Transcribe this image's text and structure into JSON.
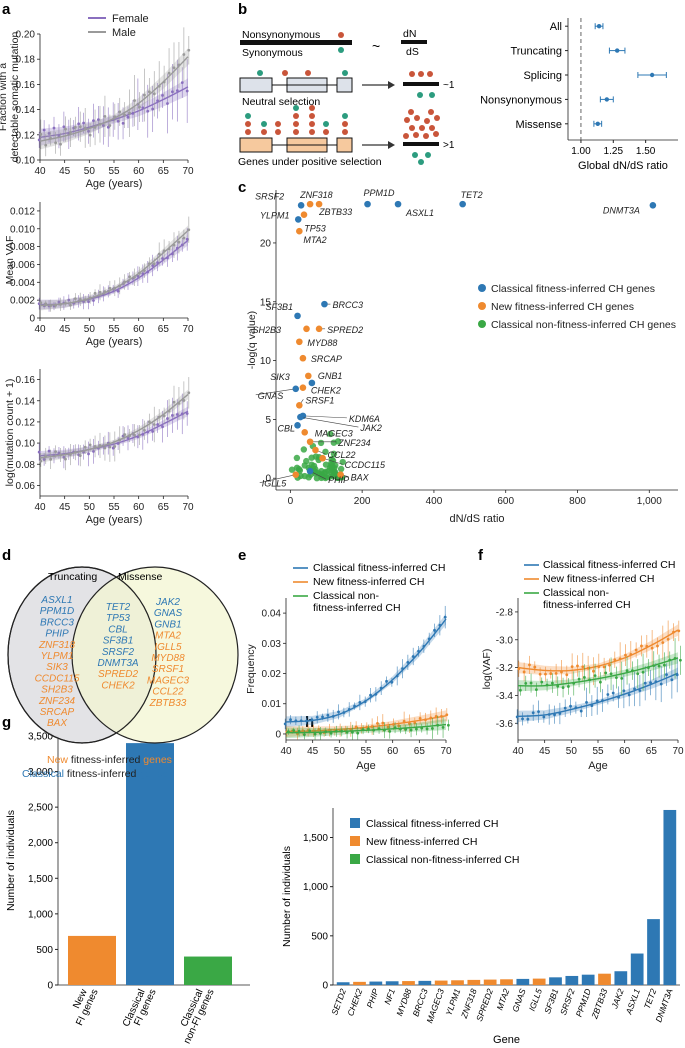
{
  "colors": {
    "classical": "#2e78b4",
    "new": "#ef8a2f",
    "nonfi": "#3aa845",
    "female": "#8a6fbf",
    "male": "#9a9a9a",
    "venn_left": "#e2e2e5",
    "venn_right": "#f3f5d2"
  },
  "panels": {
    "a": "a",
    "b": "b",
    "c": "c",
    "d": "d",
    "e": "e",
    "f": "f",
    "g": "g",
    "h": "h"
  },
  "panel_b": {
    "label_nonsyn": "Nonsynonymous",
    "label_syn": "Synonymous",
    "tilde": "~",
    "dn": "dN",
    "ds": "dS",
    "neutral": "Neutral selection",
    "positive": "Genes under positive selection",
    "ratio_neutral": "~1",
    "ratio_positive": ">1"
  },
  "panel_d": {
    "left_title": "Truncating",
    "right_title": "Missense",
    "legend_new_a": "New",
    "legend_new_b": " fitness-inferred ",
    "legend_new_c": "genes",
    "legend_cls_a": "Classical",
    "legend_cls_b": " fitness-inferred ",
    "legend_cls_c": "genes"
  },
  "chart_data": [
    {
      "id": "a1",
      "type": "line",
      "ylabel": "Fraction with a detectable somatic mutation",
      "xlabel": "Age (years)",
      "xlim": [
        40,
        70
      ],
      "ylim": [
        0.1,
        0.2
      ],
      "xticks": [
        40,
        45,
        50,
        55,
        60,
        65,
        70
      ],
      "yticks": [
        0.1,
        0.12,
        0.14,
        0.16,
        0.18,
        0.2
      ],
      "ytick_labels": [
        "0.10",
        "0.12",
        "0.14",
        "0.16",
        "0.18",
        "0.20"
      ],
      "legend": [
        "Female",
        "Male"
      ],
      "series": [
        {
          "name": "Female",
          "x": [
            40,
            45,
            50,
            55,
            60,
            65,
            70
          ],
          "values": [
            0.118,
            0.121,
            0.126,
            0.132,
            0.139,
            0.148,
            0.158
          ]
        },
        {
          "name": "Male",
          "x": [
            40,
            45,
            50,
            55,
            60,
            65,
            70
          ],
          "values": [
            0.115,
            0.119,
            0.125,
            0.133,
            0.145,
            0.162,
            0.182
          ]
        }
      ]
    },
    {
      "id": "a2",
      "type": "line",
      "ylabel": "Mean VAF",
      "xlabel": "Age (years)",
      "xlim": [
        40,
        70
      ],
      "ylim": [
        0,
        0.013
      ],
      "xticks": [
        40,
        45,
        50,
        55,
        60,
        65,
        70
      ],
      "yticks": [
        0,
        0.002,
        0.004,
        0.006,
        0.008,
        0.01,
        0.012
      ],
      "ytick_labels": [
        "0",
        "0.002",
        "0.004",
        "0.006",
        "0.008",
        "0.010",
        "0.012"
      ],
      "series": [
        {
          "name": "Female",
          "x": [
            40,
            45,
            50,
            55,
            60,
            65,
            70
          ],
          "values": [
            0.0015,
            0.0016,
            0.0021,
            0.003,
            0.0045,
            0.0065,
            0.0087
          ]
        },
        {
          "name": "Male",
          "x": [
            40,
            45,
            50,
            55,
            60,
            65,
            70
          ],
          "values": [
            0.0014,
            0.0016,
            0.0022,
            0.0033,
            0.005,
            0.0073,
            0.0098
          ]
        }
      ]
    },
    {
      "id": "a3",
      "type": "line",
      "ylabel": "log(mutation count + 1)",
      "xlabel": "Age (years)",
      "xlim": [
        40,
        70
      ],
      "ylim": [
        0.05,
        0.17
      ],
      "xticks": [
        40,
        45,
        50,
        55,
        60,
        65,
        70
      ],
      "yticks": [
        0.06,
        0.08,
        0.1,
        0.12,
        0.14,
        0.16
      ],
      "ytick_labels": [
        "0.06",
        "0.08",
        "0.10",
        "0.12",
        "0.14",
        "0.16"
      ],
      "series": [
        {
          "name": "Female",
          "x": [
            40,
            45,
            50,
            55,
            60,
            65,
            70
          ],
          "values": [
            0.088,
            0.09,
            0.094,
            0.099,
            0.107,
            0.118,
            0.13
          ]
        },
        {
          "name": "Male",
          "x": [
            40,
            45,
            50,
            55,
            60,
            65,
            70
          ],
          "values": [
            0.086,
            0.089,
            0.094,
            0.101,
            0.112,
            0.127,
            0.146
          ]
        }
      ]
    },
    {
      "id": "b_forest",
      "type": "scatter",
      "xlabel": "Global dN/dS ratio",
      "xlim": [
        0.9,
        1.75
      ],
      "xticks": [
        1.0,
        1.25,
        1.5
      ],
      "xtick_labels": [
        "1.00",
        "1.25",
        "1.50"
      ],
      "categories": [
        "All",
        "Truncating",
        "Splicing",
        "Nonsynonymous",
        "Missense"
      ],
      "values": [
        1.14,
        1.28,
        1.55,
        1.2,
        1.13
      ],
      "lower": [
        1.11,
        1.22,
        1.44,
        1.15,
        1.1
      ],
      "upper": [
        1.17,
        1.34,
        1.66,
        1.25,
        1.16
      ]
    },
    {
      "id": "c",
      "type": "scatter",
      "xlabel": "dN/dS ratio",
      "ylabel": "-log(q value)",
      "xlim": [
        -40,
        1080
      ],
      "ylim": [
        -1,
        24.5
      ],
      "xticks": [
        0,
        200,
        400,
        600,
        800,
        1000
      ],
      "xtick_labels": [
        "0",
        "200",
        "400",
        "600",
        "800",
        "1,000"
      ],
      "yticks": [
        0,
        5,
        10,
        15,
        20
      ],
      "legend": [
        "Classical fitness-inferred CH genes",
        "New fitness-inferred CH genes",
        "Classical non-fitness-inferred CH genes"
      ],
      "points": [
        {
          "gene": "DNMT3A",
          "x": 1010,
          "y": 23.2,
          "group": "classical"
        },
        {
          "gene": "TET2",
          "x": 480,
          "y": 23.3,
          "group": "classical"
        },
        {
          "gene": "ASXL1",
          "x": 300,
          "y": 23.3,
          "group": "classical"
        },
        {
          "gene": "PPM1D",
          "x": 215,
          "y": 23.3,
          "group": "classical"
        },
        {
          "gene": "ZBTB33",
          "x": 80,
          "y": 23.3,
          "group": "new"
        },
        {
          "gene": "ZNF318",
          "x": 55,
          "y": 23.3,
          "group": "new"
        },
        {
          "gene": "SRSF2",
          "x": 30,
          "y": 23.2,
          "group": "classical"
        },
        {
          "gene": "YLPM1",
          "x": 38,
          "y": 22.4,
          "group": "new"
        },
        {
          "gene": "TP53",
          "x": 22,
          "y": 22.0,
          "group": "classical"
        },
        {
          "gene": "MTA2",
          "x": 25,
          "y": 21.0,
          "group": "new"
        },
        {
          "gene": "BRCC3",
          "x": 95,
          "y": 14.8,
          "group": "classical"
        },
        {
          "gene": "SF3B1",
          "x": 20,
          "y": 13.8,
          "group": "classical"
        },
        {
          "gene": "SPRED2",
          "x": 80,
          "y": 12.7,
          "group": "new"
        },
        {
          "gene": "SH2B3",
          "x": 45,
          "y": 12.7,
          "group": "new"
        },
        {
          "gene": "MYD88",
          "x": 25,
          "y": 11.6,
          "group": "new"
        },
        {
          "gene": "SRCAP",
          "x": 35,
          "y": 10.2,
          "group": "new"
        },
        {
          "gene": "SIK3",
          "x": 50,
          "y": 8.7,
          "group": "new"
        },
        {
          "gene": "GNB1",
          "x": 60,
          "y": 8.1,
          "group": "classical"
        },
        {
          "gene": "CHEK2",
          "x": 35,
          "y": 7.7,
          "group": "new"
        },
        {
          "gene": "GNAS",
          "x": 15,
          "y": 7.6,
          "group": "classical"
        },
        {
          "gene": "SRSF1",
          "x": 25,
          "y": 6.2,
          "group": "new"
        },
        {
          "gene": "KDM6A",
          "x": 35,
          "y": 5.3,
          "group": "classical"
        },
        {
          "gene": "JAK2",
          "x": 28,
          "y": 5.2,
          "group": "classical"
        },
        {
          "gene": "CBL",
          "x": 20,
          "y": 4.5,
          "group": "classical"
        },
        {
          "gene": "MAGEC3",
          "x": 40,
          "y": 3.9,
          "group": "new"
        },
        {
          "gene": "ZNF234",
          "x": 55,
          "y": 3.1,
          "group": "new"
        },
        {
          "gene": "CCL22",
          "x": 70,
          "y": 2.4,
          "group": "new"
        },
        {
          "gene": "CCDC115",
          "x": 90,
          "y": 1.7,
          "group": "new"
        },
        {
          "gene": "BAX",
          "x": 140,
          "y": 0.3,
          "group": "new"
        },
        {
          "gene": "PHIP",
          "x": 55,
          "y": 0.6,
          "group": "classical"
        },
        {
          "gene": "IGLL5",
          "x": 15,
          "y": 0.3,
          "group": "new"
        }
      ]
    },
    {
      "id": "e",
      "type": "line",
      "xlabel": "Age",
      "ylabel": "Frequency",
      "xlim": [
        40,
        70
      ],
      "ylim": [
        -0.002,
        0.045
      ],
      "xticks": [
        40,
        45,
        50,
        55,
        60,
        65,
        70
      ],
      "yticks": [
        0,
        0.01,
        0.02,
        0.03,
        0.04
      ],
      "ytick_labels": [
        "0",
        "0.01",
        "0.02",
        "0.03",
        "0.04"
      ],
      "legend": [
        "Classical fitness-inferred CH",
        "New fitness-inferred CH",
        "Classical non-fitness-inferred CH"
      ],
      "series": [
        {
          "name": "Classical fitness-inferred CH",
          "x": [
            40,
            45,
            50,
            55,
            60,
            65,
            70
          ],
          "values": [
            0.004,
            0.0045,
            0.0065,
            0.011,
            0.018,
            0.027,
            0.038
          ]
        },
        {
          "name": "New fitness-inferred CH",
          "x": [
            40,
            45,
            50,
            55,
            60,
            65,
            70
          ],
          "values": [
            0.0008,
            0.001,
            0.0015,
            0.0022,
            0.0032,
            0.0045,
            0.006
          ]
        },
        {
          "name": "Classical non-fitness-inferred CH",
          "x": [
            40,
            45,
            50,
            55,
            60,
            65,
            70
          ],
          "values": [
            0.0004,
            0.0005,
            0.0008,
            0.0012,
            0.0017,
            0.0023,
            0.0031
          ]
        }
      ]
    },
    {
      "id": "f",
      "type": "line",
      "xlabel": "Age",
      "ylabel": "log(VAF)",
      "xlim": [
        40,
        70
      ],
      "ylim": [
        -3.72,
        -2.7
      ],
      "xticks": [
        40,
        45,
        50,
        55,
        60,
        65,
        70
      ],
      "yticks": [
        -3.6,
        -3.4,
        -3.2,
        -3.0,
        -2.8
      ],
      "ytick_labels": [
        "-3.6",
        "-3.4",
        "-3.2",
        "-3.0",
        "-2.8"
      ],
      "legend": [
        "Classical fitness-inferred CH",
        "New fitness-inferred CH",
        "Classical non-fitness-inferred CH"
      ],
      "series": [
        {
          "name": "Classical fitness-inferred CH",
          "x": [
            40,
            45,
            50,
            55,
            60,
            65,
            70
          ],
          "values": [
            -3.55,
            -3.54,
            -3.5,
            -3.45,
            -3.39,
            -3.32,
            -3.24
          ]
        },
        {
          "name": "New fitness-inferred CH",
          "x": [
            40,
            45,
            50,
            55,
            60,
            65,
            70
          ],
          "values": [
            -3.2,
            -3.22,
            -3.22,
            -3.19,
            -3.13,
            -3.04,
            -2.93
          ]
        },
        {
          "name": "Classical non-fitness-inferred CH",
          "x": [
            40,
            45,
            50,
            55,
            60,
            65,
            70
          ],
          "values": [
            -3.33,
            -3.33,
            -3.31,
            -3.28,
            -3.24,
            -3.19,
            -3.13
          ]
        }
      ]
    },
    {
      "id": "g",
      "type": "bar",
      "ylabel": "Number of individuals",
      "ylim": [
        0,
        3500
      ],
      "categories": [
        "New FI genes",
        "Classical FI genes",
        "Classical non-FI genes"
      ],
      "category_lines": [
        [
          "New",
          "FI genes"
        ],
        [
          "Classical",
          "FI genes"
        ],
        [
          "Classical",
          "non-FI genes"
        ]
      ],
      "values": [
        690,
        3400,
        400
      ],
      "yticks": [
        0,
        500,
        1000,
        1500,
        2000,
        2500,
        3000,
        3500
      ],
      "ytick_labels": [
        "0",
        "500",
        "1,000",
        "1,500",
        "2,000",
        "2,500",
        "3,000",
        "3,500"
      ]
    },
    {
      "id": "h",
      "type": "bar",
      "xlabel": "Gene",
      "ylabel": "Number of individuals",
      "ylim": [
        0,
        1800
      ],
      "categories": [
        "SETD2",
        "CHEK2",
        "PHIP",
        "NF1",
        "MYD88",
        "BRCC3",
        "MAGEC3",
        "YLPM1",
        "ZNF318",
        "SPRED2",
        "MTA2",
        "GNAS",
        "IGLL5",
        "SF3B1",
        "SRSF2",
        "PPM1D",
        "ZBTB33",
        "JAK2",
        "ASXL1",
        "TET2",
        "DNMT3A"
      ],
      "groups": [
        "classical",
        "new",
        "classical",
        "classical",
        "new",
        "classical",
        "new",
        "new",
        "new",
        "new",
        "new",
        "classical",
        "new",
        "classical",
        "classical",
        "classical",
        "new",
        "classical",
        "classical",
        "classical",
        "classical"
      ],
      "values": [
        28,
        32,
        35,
        38,
        40,
        42,
        45,
        48,
        52,
        55,
        58,
        62,
        65,
        78,
        92,
        105,
        115,
        140,
        320,
        670,
        1780
      ],
      "yticks": [
        0,
        500,
        1000,
        1500
      ],
      "ytick_labels": [
        "0",
        "500",
        "1,000",
        "1,500"
      ],
      "legend": [
        "Classical fitness-inferred CH",
        "New fitness-inferred CH",
        "Classical non-fitness-inferred CH"
      ]
    },
    {
      "id": "d_venn",
      "type": "table",
      "truncating_only": [
        {
          "g": "ASXL1",
          "grp": "classical"
        },
        {
          "g": "PPM1D",
          "grp": "classical"
        },
        {
          "g": "BRCC3",
          "grp": "classical"
        },
        {
          "g": "PHIP",
          "grp": "classical"
        },
        {
          "g": "ZNF318",
          "grp": "new"
        },
        {
          "g": "YLPM1",
          "grp": "new"
        },
        {
          "g": "SIK3",
          "grp": "new"
        },
        {
          "g": "CCDC115",
          "grp": "new"
        },
        {
          "g": "SH2B3",
          "grp": "new"
        },
        {
          "g": "ZNF234",
          "grp": "new"
        },
        {
          "g": "SRCAP",
          "grp": "new"
        },
        {
          "g": "BAX",
          "grp": "new"
        }
      ],
      "both": [
        {
          "g": "TET2",
          "grp": "classical"
        },
        {
          "g": "TP53",
          "grp": "classical"
        },
        {
          "g": "CBL",
          "grp": "classical"
        },
        {
          "g": "SF3B1",
          "grp": "classical"
        },
        {
          "g": "SRSF2",
          "grp": "classical"
        },
        {
          "g": "DNMT3A",
          "grp": "classical"
        },
        {
          "g": "SPRED2",
          "grp": "new"
        },
        {
          "g": "CHEK2",
          "grp": "new"
        }
      ],
      "missense_only": [
        {
          "g": "JAK2",
          "grp": "classical"
        },
        {
          "g": "GNAS",
          "grp": "classical"
        },
        {
          "g": "GNB1",
          "grp": "classical"
        },
        {
          "g": "MTA2",
          "grp": "new"
        },
        {
          "g": "IGLL5",
          "grp": "new"
        },
        {
          "g": "MYD88",
          "grp": "new"
        },
        {
          "g": "SRSF1",
          "grp": "new"
        },
        {
          "g": "MAGEC3",
          "grp": "new"
        },
        {
          "g": "CCL22",
          "grp": "new"
        },
        {
          "g": "ZBTB33",
          "grp": "new"
        }
      ]
    }
  ]
}
